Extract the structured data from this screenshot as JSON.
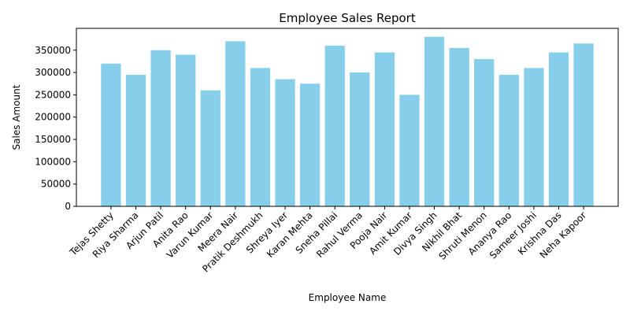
{
  "chart_data": {
    "type": "bar",
    "title": "Employee Sales Report",
    "xlabel": "Employee Name",
    "ylabel": "Sales Amount",
    "categories": [
      "Tejas Shetty",
      "Riya Sharma",
      "Arjun Patil",
      "Anita Rao",
      "Varun Kumar",
      "Meera Nair",
      "Pratik Deshmukh",
      "Shreya Iyer",
      "Karan Mehta",
      "Sneha Pillai",
      "Rahul Verma",
      "Pooja Nair",
      "Amit Kumar",
      "Divya Singh",
      "Nikhil Bhat",
      "Shruti Menon",
      "Ananya Rao",
      "Sameer Joshi",
      "Krishna Das",
      "Neha Kapoor"
    ],
    "values": [
      320000,
      295000,
      350000,
      340000,
      260000,
      370000,
      310000,
      285000,
      275000,
      360000,
      300000,
      345000,
      250000,
      380000,
      355000,
      330000,
      295000,
      310000,
      345000,
      365000
    ],
    "ylim": [
      0,
      399000
    ],
    "yticks": [
      0,
      50000,
      100000,
      150000,
      200000,
      250000,
      300000,
      350000
    ],
    "bar_color": "#87ceeb",
    "grid": false,
    "x_tick_rotation": 45
  }
}
